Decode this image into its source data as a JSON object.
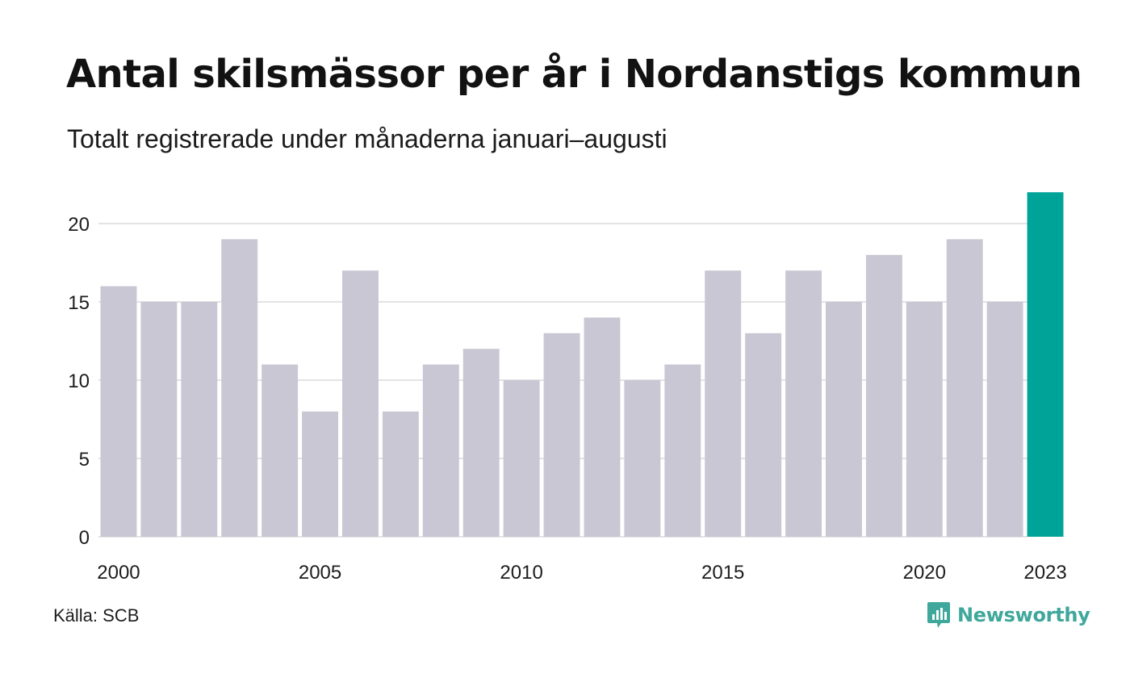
{
  "title": "Antal skilsmässor per år i Nordanstigs kommun",
  "subtitle": "Totalt registrerade under månaderna januari–augusti",
  "source": "Källa: SCB",
  "brand": {
    "name": "Newsworthy",
    "icon": "newsworthy-logo-icon",
    "color": "#3fa79b"
  },
  "colors": {
    "bar": "#c9c7d3",
    "highlight": "#00a398",
    "grid": "#e3e3e3"
  },
  "chart_data": {
    "type": "bar",
    "categories": [
      "2000",
      "2001",
      "2002",
      "2003",
      "2004",
      "2005",
      "2006",
      "2007",
      "2008",
      "2009",
      "2010",
      "2011",
      "2012",
      "2013",
      "2014",
      "2015",
      "2016",
      "2017",
      "2018",
      "2019",
      "2020",
      "2021",
      "2022",
      "2023"
    ],
    "values": [
      16,
      15,
      15,
      19,
      11,
      8,
      17,
      8,
      11,
      12,
      10,
      13,
      14,
      10,
      11,
      17,
      13,
      17,
      15,
      18,
      15,
      19,
      15,
      22
    ],
    "highlight_category": "2023",
    "x_tick_labels": [
      "2000",
      "2005",
      "2010",
      "2015",
      "2020",
      "2023"
    ],
    "y_ticks": [
      0,
      5,
      10,
      15,
      20
    ],
    "ylim": [
      0,
      22
    ],
    "grid": true,
    "xlabel": "",
    "ylabel": ""
  }
}
